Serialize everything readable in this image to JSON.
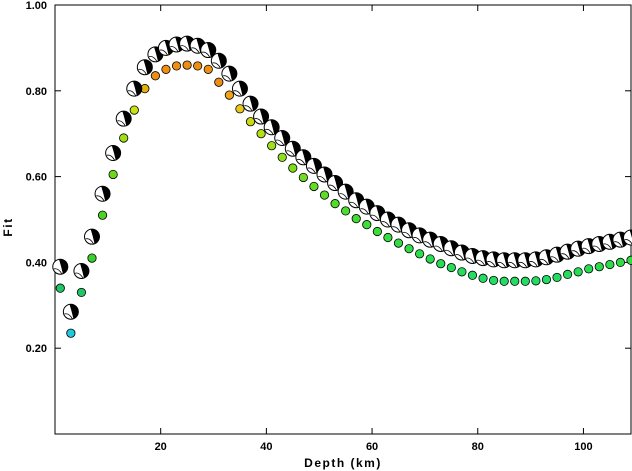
{
  "chart_data": {
    "type": "scatter",
    "title": "",
    "xlabel": "Depth (km)",
    "ylabel": "Fit",
    "xlim": [
      0,
      109
    ],
    "ylim": [
      0,
      1.0
    ],
    "x_ticks": [
      20,
      40,
      60,
      80,
      100
    ],
    "x_tick_labels": [
      "20",
      "40",
      "60",
      "80",
      "100"
    ],
    "y_ticks": [
      0.2,
      0.4,
      0.6,
      0.8,
      1.0
    ],
    "y_tick_labels": [
      "0.20",
      "0.40",
      "0.60",
      "0.80",
      "1.00"
    ],
    "grid": false,
    "series": [
      {
        "marker": "beachball",
        "color": "#000000",
        "x": [
          1,
          3,
          5,
          7,
          9,
          11,
          13,
          15,
          17,
          19,
          21,
          23,
          25,
          27,
          29,
          31,
          33,
          35,
          37,
          39,
          41,
          43,
          45,
          47,
          49,
          51,
          53,
          55,
          57,
          59,
          61,
          63,
          65,
          67,
          69,
          71,
          73,
          75,
          77,
          79,
          81,
          83,
          85,
          87,
          89,
          91,
          93,
          95,
          97,
          99,
          101,
          103,
          105,
          107,
          109
        ],
        "values": [
          0.39,
          0.285,
          0.38,
          0.46,
          0.56,
          0.655,
          0.735,
          0.805,
          0.855,
          0.885,
          0.9,
          0.908,
          0.91,
          0.905,
          0.895,
          0.87,
          0.84,
          0.805,
          0.77,
          0.74,
          0.715,
          0.69,
          0.665,
          0.645,
          0.625,
          0.605,
          0.585,
          0.565,
          0.545,
          0.53,
          0.515,
          0.5,
          0.488,
          0.475,
          0.463,
          0.453,
          0.443,
          0.433,
          0.423,
          0.415,
          0.41,
          0.407,
          0.405,
          0.405,
          0.405,
          0.407,
          0.412,
          0.418,
          0.425,
          0.432,
          0.438,
          0.443,
          0.448,
          0.453,
          0.458
        ]
      },
      {
        "marker": "circle",
        "x": [
          1,
          3,
          5,
          7,
          9,
          11,
          13,
          15,
          17,
          19,
          21,
          23,
          25,
          27,
          29,
          31,
          33,
          35,
          37,
          39,
          41,
          43,
          45,
          47,
          49,
          51,
          53,
          55,
          57,
          59,
          61,
          63,
          65,
          67,
          69,
          71,
          73,
          75,
          77,
          79,
          81,
          83,
          85,
          87,
          89,
          91,
          93,
          95,
          97,
          99,
          101,
          103,
          105,
          107,
          109
        ],
        "values": [
          0.34,
          0.235,
          0.33,
          0.41,
          0.51,
          0.605,
          0.69,
          0.755,
          0.805,
          0.835,
          0.85,
          0.858,
          0.86,
          0.858,
          0.85,
          0.82,
          0.79,
          0.758,
          0.728,
          0.7,
          0.672,
          0.645,
          0.62,
          0.598,
          0.577,
          0.557,
          0.537,
          0.52,
          0.502,
          0.488,
          0.472,
          0.458,
          0.445,
          0.432,
          0.42,
          0.408,
          0.397,
          0.388,
          0.378,
          0.37,
          0.363,
          0.358,
          0.356,
          0.356,
          0.356,
          0.357,
          0.36,
          0.365,
          0.372,
          0.378,
          0.385,
          0.39,
          0.395,
          0.4,
          0.405
        ],
        "colors": [
          "#21c466",
          "#1fc9e0",
          "#21c466",
          "#37d12a",
          "#4bd520",
          "#6fd81a",
          "#a2dd18",
          "#c9e015",
          "#e3b010",
          "#ee8f14",
          "#ee8f14",
          "#ee8f14",
          "#ee8f14",
          "#ee8f14",
          "#ee8f14",
          "#ee8f14",
          "#f0a416",
          "#e8c81a",
          "#ccdc14",
          "#b4e018",
          "#9ee01a",
          "#8ee01c",
          "#7fdc1c",
          "#73dc20",
          "#64dc24",
          "#5adc28",
          "#50dc2a",
          "#4adc30",
          "#44dc34",
          "#40dc38",
          "#3cdc3c",
          "#38dc40",
          "#34dc44",
          "#30dc48",
          "#2edc4c",
          "#2cdc50",
          "#2adc54",
          "#28dc58",
          "#26dc5c",
          "#24dc60",
          "#22dc64",
          "#22dc64",
          "#22dc64",
          "#22dc64",
          "#22dc64",
          "#22dc64",
          "#22dc64",
          "#24dc60",
          "#26dc5c",
          "#28dc58",
          "#2adc54",
          "#2cdc50",
          "#2edc4c",
          "#30dc48",
          "#34dc44"
        ]
      }
    ]
  }
}
